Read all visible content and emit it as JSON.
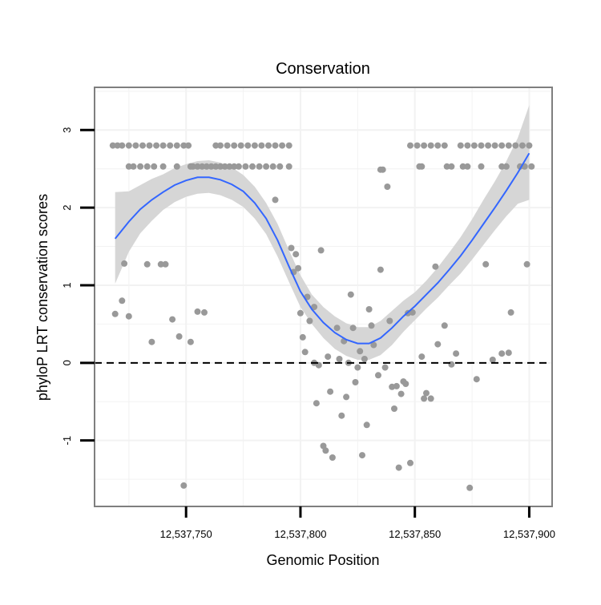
{
  "chart_data": {
    "type": "scatter",
    "title": "Conservation",
    "xlabel": "Genomic Position",
    "ylabel": "phyloP LRT conservation scores",
    "xlim": [
      12537710,
      12537910
    ],
    "ylim": [
      -1.85,
      3.55
    ],
    "x_ticks": [
      12537750,
      12537800,
      12537850,
      12537900
    ],
    "x_tick_labels": [
      "12,537,750",
      "12,537,800",
      "12,537,850",
      "12,537,900"
    ],
    "y_ticks": [
      -1,
      0,
      1,
      2,
      3
    ],
    "y_tick_labels": [
      "-1",
      "0",
      "1",
      "2",
      "3"
    ],
    "reference_line": {
      "y": 0,
      "style": "dashed"
    },
    "colors": {
      "points": "#999999",
      "smooth": "#3366ff",
      "band": "#d4d4d4",
      "frame": "#7f7f7f",
      "grid": "#f2f2f2"
    },
    "points": [
      {
        "x": 12537718,
        "y": 2.8
      },
      {
        "x": 12537720,
        "y": 2.8
      },
      {
        "x": 12537722,
        "y": 2.8
      },
      {
        "x": 12537725,
        "y": 2.8
      },
      {
        "x": 12537728,
        "y": 2.8
      },
      {
        "x": 12537731,
        "y": 2.8
      },
      {
        "x": 12537734,
        "y": 2.8
      },
      {
        "x": 12537737,
        "y": 2.8
      },
      {
        "x": 12537740,
        "y": 2.8
      },
      {
        "x": 12537743,
        "y": 2.8
      },
      {
        "x": 12537746,
        "y": 2.8
      },
      {
        "x": 12537749,
        "y": 2.8
      },
      {
        "x": 12537751,
        "y": 2.8
      },
      {
        "x": 12537725,
        "y": 2.53
      },
      {
        "x": 12537727,
        "y": 2.53
      },
      {
        "x": 12537730,
        "y": 2.53
      },
      {
        "x": 12537733,
        "y": 2.53
      },
      {
        "x": 12537736,
        "y": 2.53
      },
      {
        "x": 12537740,
        "y": 2.53
      },
      {
        "x": 12537746,
        "y": 2.53
      },
      {
        "x": 12537752,
        "y": 2.53
      },
      {
        "x": 12537753,
        "y": 2.53
      },
      {
        "x": 12537755,
        "y": 2.53
      },
      {
        "x": 12537757,
        "y": 2.53
      },
      {
        "x": 12537759,
        "y": 2.53
      },
      {
        "x": 12537761,
        "y": 2.53
      },
      {
        "x": 12537763,
        "y": 2.53
      },
      {
        "x": 12537765,
        "y": 2.53
      },
      {
        "x": 12537767,
        "y": 2.53
      },
      {
        "x": 12537769,
        "y": 2.53
      },
      {
        "x": 12537771,
        "y": 2.53
      },
      {
        "x": 12537773,
        "y": 2.53
      },
      {
        "x": 12537776,
        "y": 2.53
      },
      {
        "x": 12537779,
        "y": 2.53
      },
      {
        "x": 12537782,
        "y": 2.53
      },
      {
        "x": 12537785,
        "y": 2.53
      },
      {
        "x": 12537788,
        "y": 2.53
      },
      {
        "x": 12537791,
        "y": 2.53
      },
      {
        "x": 12537795,
        "y": 2.53
      },
      {
        "x": 12537763,
        "y": 2.8
      },
      {
        "x": 12537765,
        "y": 2.8
      },
      {
        "x": 12537768,
        "y": 2.8
      },
      {
        "x": 12537771,
        "y": 2.8
      },
      {
        "x": 12537774,
        "y": 2.8
      },
      {
        "x": 12537777,
        "y": 2.8
      },
      {
        "x": 12537780,
        "y": 2.8
      },
      {
        "x": 12537783,
        "y": 2.8
      },
      {
        "x": 12537786,
        "y": 2.8
      },
      {
        "x": 12537789,
        "y": 2.8
      },
      {
        "x": 12537792,
        "y": 2.8
      },
      {
        "x": 12537795,
        "y": 2.8
      },
      {
        "x": 12537835,
        "y": 2.49
      },
      {
        "x": 12537836,
        "y": 2.49
      },
      {
        "x": 12537838,
        "y": 2.27
      },
      {
        "x": 12537789,
        "y": 2.1
      },
      {
        "x": 12537848,
        "y": 2.8
      },
      {
        "x": 12537851,
        "y": 2.8
      },
      {
        "x": 12537854,
        "y": 2.8
      },
      {
        "x": 12537857,
        "y": 2.8
      },
      {
        "x": 12537860,
        "y": 2.8
      },
      {
        "x": 12537863,
        "y": 2.8
      },
      {
        "x": 12537870,
        "y": 2.8
      },
      {
        "x": 12537873,
        "y": 2.8
      },
      {
        "x": 12537876,
        "y": 2.8
      },
      {
        "x": 12537879,
        "y": 2.8
      },
      {
        "x": 12537882,
        "y": 2.8
      },
      {
        "x": 12537885,
        "y": 2.8
      },
      {
        "x": 12537888,
        "y": 2.8
      },
      {
        "x": 12537891,
        "y": 2.8
      },
      {
        "x": 12537894,
        "y": 2.8
      },
      {
        "x": 12537897,
        "y": 2.8
      },
      {
        "x": 12537900,
        "y": 2.8
      },
      {
        "x": 12537852,
        "y": 2.53
      },
      {
        "x": 12537853,
        "y": 2.53
      },
      {
        "x": 12537864,
        "y": 2.53
      },
      {
        "x": 12537866,
        "y": 2.53
      },
      {
        "x": 12537871,
        "y": 2.53
      },
      {
        "x": 12537873,
        "y": 2.53
      },
      {
        "x": 12537879,
        "y": 2.53
      },
      {
        "x": 12537888,
        "y": 2.53
      },
      {
        "x": 12537890,
        "y": 2.53
      },
      {
        "x": 12537896,
        "y": 2.53
      },
      {
        "x": 12537898,
        "y": 2.53
      },
      {
        "x": 12537901,
        "y": 2.53
      },
      {
        "x": 12537719,
        "y": 0.63
      },
      {
        "x": 12537722,
        "y": 0.8
      },
      {
        "x": 12537723,
        "y": 1.28
      },
      {
        "x": 12537725,
        "y": 0.6
      },
      {
        "x": 12537733,
        "y": 1.27
      },
      {
        "x": 12537735,
        "y": 0.27
      },
      {
        "x": 12537739,
        "y": 1.27
      },
      {
        "x": 12537741,
        "y": 1.27
      },
      {
        "x": 12537744,
        "y": 0.56
      },
      {
        "x": 12537747,
        "y": 0.34
      },
      {
        "x": 12537749,
        "y": -1.58
      },
      {
        "x": 12537752,
        "y": 0.27
      },
      {
        "x": 12537755,
        "y": 0.66
      },
      {
        "x": 12537758,
        "y": 0.65
      },
      {
        "x": 12537796,
        "y": 1.48
      },
      {
        "x": 12537797,
        "y": 1.17
      },
      {
        "x": 12537798,
        "y": 1.4
      },
      {
        "x": 12537799,
        "y": 1.22
      },
      {
        "x": 12537800,
        "y": 0.64
      },
      {
        "x": 12537801,
        "y": 0.33
      },
      {
        "x": 12537802,
        "y": 0.14
      },
      {
        "x": 12537803,
        "y": 0.85
      },
      {
        "x": 12537804,
        "y": 0.54
      },
      {
        "x": 12537806,
        "y": 0.72
      },
      {
        "x": 12537806,
        "y": 0.0
      },
      {
        "x": 12537807,
        "y": -0.52
      },
      {
        "x": 12537808,
        "y": -0.03
      },
      {
        "x": 12537809,
        "y": 1.45
      },
      {
        "x": 12537810,
        "y": -1.07
      },
      {
        "x": 12537811,
        "y": -1.13
      },
      {
        "x": 12537812,
        "y": 0.08
      },
      {
        "x": 12537813,
        "y": -0.37
      },
      {
        "x": 12537814,
        "y": -1.22
      },
      {
        "x": 12537816,
        "y": 0.45
      },
      {
        "x": 12537817,
        "y": 0.05
      },
      {
        "x": 12537818,
        "y": -0.68
      },
      {
        "x": 12537819,
        "y": 0.28
      },
      {
        "x": 12537820,
        "y": -0.44
      },
      {
        "x": 12537821,
        "y": 0.0
      },
      {
        "x": 12537822,
        "y": 0.88
      },
      {
        "x": 12537823,
        "y": 0.45
      },
      {
        "x": 12537824,
        "y": -0.25
      },
      {
        "x": 12537825,
        "y": -0.06
      },
      {
        "x": 12537826,
        "y": 0.15
      },
      {
        "x": 12537827,
        "y": -1.19
      },
      {
        "x": 12537828,
        "y": 0.05
      },
      {
        "x": 12537829,
        "y": -0.8
      },
      {
        "x": 12537830,
        "y": 0.69
      },
      {
        "x": 12537831,
        "y": 0.48
      },
      {
        "x": 12537832,
        "y": 0.23
      },
      {
        "x": 12537834,
        "y": -0.16
      },
      {
        "x": 12537835,
        "y": 1.2
      },
      {
        "x": 12537837,
        "y": -0.06
      },
      {
        "x": 12537839,
        "y": 0.54
      },
      {
        "x": 12537840,
        "y": -0.31
      },
      {
        "x": 12537841,
        "y": -0.59
      },
      {
        "x": 12537842,
        "y": -0.3
      },
      {
        "x": 12537843,
        "y": -1.35
      },
      {
        "x": 12537844,
        "y": -0.4
      },
      {
        "x": 12537845,
        "y": -0.24
      },
      {
        "x": 12537846,
        "y": -0.27
      },
      {
        "x": 12537847,
        "y": 0.64
      },
      {
        "x": 12537848,
        "y": -1.29
      },
      {
        "x": 12537849,
        "y": 0.65
      },
      {
        "x": 12537853,
        "y": 0.08
      },
      {
        "x": 12537854,
        "y": -0.46
      },
      {
        "x": 12537855,
        "y": -0.39
      },
      {
        "x": 12537857,
        "y": -0.46
      },
      {
        "x": 12537859,
        "y": 1.24
      },
      {
        "x": 12537860,
        "y": 0.24
      },
      {
        "x": 12537863,
        "y": 0.48
      },
      {
        "x": 12537866,
        "y": -0.02
      },
      {
        "x": 12537868,
        "y": 0.12
      },
      {
        "x": 12537874,
        "y": -1.61
      },
      {
        "x": 12537877,
        "y": -0.21
      },
      {
        "x": 12537881,
        "y": 1.27
      },
      {
        "x": 12537884,
        "y": 0.04
      },
      {
        "x": 12537888,
        "y": 0.12
      },
      {
        "x": 12537891,
        "y": 0.13
      },
      {
        "x": 12537892,
        "y": 0.65
      },
      {
        "x": 12537899,
        "y": 1.27
      }
    ],
    "smooth": {
      "x": [
        12537719,
        12537725,
        12537730,
        12537735,
        12537740,
        12537745,
        12537750,
        12537755,
        12537760,
        12537765,
        12537770,
        12537775,
        12537780,
        12537785,
        12537790,
        12537795,
        12537800,
        12537805,
        12537810,
        12537815,
        12537820,
        12537825,
        12537830,
        12537835,
        12537840,
        12537845,
        12537850,
        12537855,
        12537860,
        12537865,
        12537870,
        12537875,
        12537880,
        12537885,
        12537890,
        12537895,
        12537900
      ],
      "y": [
        1.6,
        1.82,
        1.98,
        2.1,
        2.2,
        2.29,
        2.35,
        2.39,
        2.39,
        2.36,
        2.3,
        2.21,
        2.06,
        1.86,
        1.58,
        1.24,
        0.92,
        0.69,
        0.52,
        0.39,
        0.3,
        0.25,
        0.25,
        0.32,
        0.45,
        0.6,
        0.73,
        0.88,
        1.03,
        1.2,
        1.38,
        1.58,
        1.79,
        2.0,
        2.22,
        2.45,
        2.7
      ],
      "lower": [
        1.02,
        1.43,
        1.67,
        1.83,
        1.97,
        2.07,
        2.14,
        2.18,
        2.19,
        2.16,
        2.1,
        2.01,
        1.86,
        1.66,
        1.37,
        1.04,
        0.72,
        0.5,
        0.32,
        0.18,
        0.09,
        0.04,
        0.04,
        0.1,
        0.23,
        0.4,
        0.55,
        0.7,
        0.84,
        1.0,
        1.15,
        1.33,
        1.52,
        1.71,
        1.89,
        2.05,
        2.1
      ],
      "upper": [
        2.2,
        2.21,
        2.29,
        2.37,
        2.43,
        2.51,
        2.56,
        2.6,
        2.61,
        2.58,
        2.52,
        2.42,
        2.27,
        2.06,
        1.79,
        1.45,
        1.13,
        0.88,
        0.72,
        0.6,
        0.51,
        0.46,
        0.46,
        0.54,
        0.67,
        0.8,
        0.91,
        1.06,
        1.23,
        1.42,
        1.62,
        1.85,
        2.1,
        2.34,
        2.6,
        2.9,
        3.32
      ]
    }
  }
}
